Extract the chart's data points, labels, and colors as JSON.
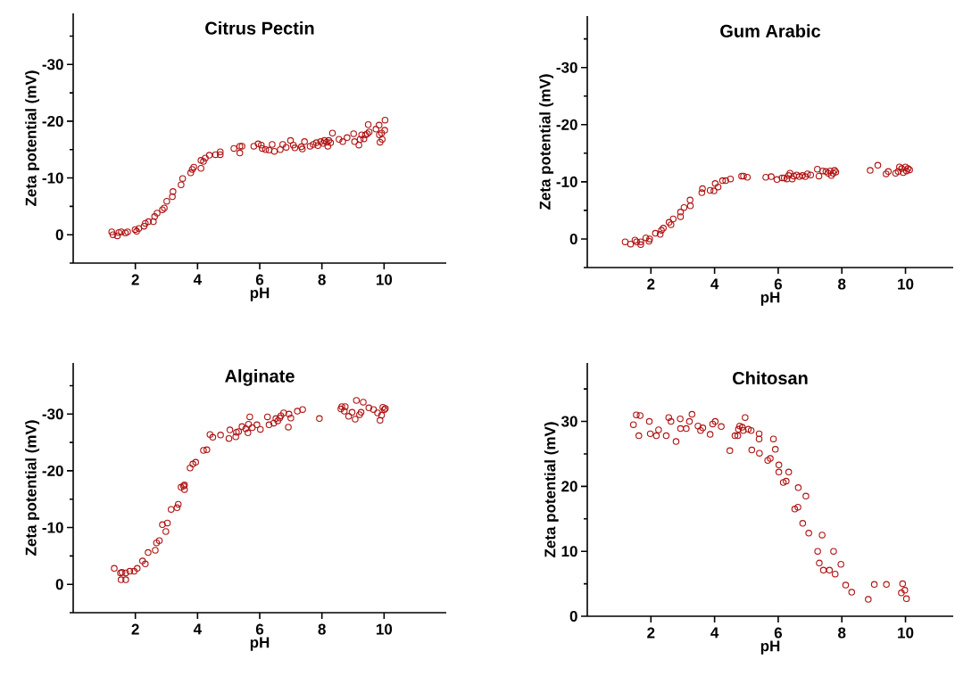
{
  "chart_data": [
    {
      "type": "scatter",
      "title": "Citrus Pectin",
      "xlabel": "pH",
      "ylabel": "Zeta potential (mV)",
      "color": "#b01212",
      "marker": "circle",
      "xlim": [
        0,
        12
      ],
      "ylim": [
        5,
        -39
      ],
      "xticks": [
        2,
        4,
        6,
        8,
        10
      ],
      "yticks": [
        {
          "value": 5,
          "label": null
        },
        0,
        {
          "value": -5,
          "label": null
        },
        -10,
        {
          "value": -15,
          "label": null
        },
        -20,
        {
          "value": -25,
          "label": null
        },
        -30,
        {
          "value": -35,
          "label": null
        }
      ],
      "x": [
        1.24,
        1.28,
        1.42,
        1.47,
        1.55,
        1.68,
        1.75,
        1.99,
        2.04,
        2.11,
        2.28,
        2.32,
        2.42,
        2.58,
        2.62,
        2.7,
        2.87,
        2.93,
        3.01,
        3.19,
        3.21,
        3.47,
        3.52,
        3.78,
        3.83,
        3.88,
        4.11,
        4.11,
        4.19,
        4.25,
        4.38,
        4.58,
        4.73,
        4.73,
        5.17,
        5.36,
        5.36,
        5.43,
        5.81,
        5.95,
        6.05,
        6.08,
        6.19,
        6.3,
        6.4,
        6.47,
        6.66,
        6.74,
        6.85,
        6.99,
        7.08,
        7.13,
        7.34,
        7.37,
        7.44,
        7.62,
        7.72,
        7.82,
        7.87,
        7.96,
        8.04,
        8.08,
        8.15,
        8.19,
        8.22,
        8.28,
        8.34,
        8.55,
        8.67,
        8.81,
        9.02,
        9.05,
        9.19,
        9.23,
        9.28,
        9.35,
        9.4,
        9.46,
        9.49,
        9.52,
        9.74,
        9.84,
        9.85,
        9.87,
        9.92,
        9.94,
        10.02,
        10.03
      ],
      "values": [
        -0.5,
        0,
        0.2,
        -0.4,
        -0.5,
        -0.3,
        -0.5,
        -0.9,
        -0.6,
        -1.1,
        -1.5,
        -2,
        -2.3,
        -2.3,
        -3.2,
        -3.8,
        -4.4,
        -4.7,
        -5.9,
        -6.7,
        -7.6,
        -8.8,
        -9.9,
        -10.9,
        -11.5,
        -11.9,
        -11.7,
        -13.1,
        -12.9,
        -13.5,
        -14,
        -14.1,
        -14.6,
        -14.1,
        -15.2,
        -14.4,
        -15.6,
        -15.6,
        -15.6,
        -16,
        -15.8,
        -15.2,
        -15,
        -14.9,
        -15.9,
        -14.7,
        -15,
        -15.9,
        -15.4,
        -16.6,
        -15.8,
        -15.3,
        -15.5,
        -15.1,
        -16.4,
        -15.6,
        -15.9,
        -16.2,
        -15.7,
        -16.4,
        -16.1,
        -16.6,
        -16.3,
        -15.6,
        -16.6,
        -16.2,
        -17.9,
        -16.8,
        -16.4,
        -17.1,
        -17.8,
        -16.4,
        -15.8,
        -16.8,
        -17.6,
        -16.9,
        -17.6,
        -17.8,
        -19.4,
        -18.1,
        -18.6,
        -19.3,
        -17.6,
        -16.3,
        -17.9,
        -16.8,
        -18.4,
        -20.2
      ]
    },
    {
      "type": "scatter",
      "title": "Gum Arabic",
      "xlabel": "pH",
      "ylabel": "Zeta potential (mV)",
      "color": "#b01212",
      "marker": "circle",
      "xlim": [
        0,
        11.5
      ],
      "ylim": [
        5,
        -39
      ],
      "xticks": [
        2,
        4,
        6,
        8,
        10
      ],
      "yticks": [
        {
          "value": 5,
          "label": null
        },
        0,
        {
          "value": -5,
          "label": null
        },
        -10,
        {
          "value": -15,
          "label": null
        },
        -20,
        {
          "value": -25,
          "label": null
        },
        -30,
        {
          "value": -35,
          "label": null
        }
      ],
      "x": [
        1.19,
        1.36,
        1.5,
        1.55,
        1.68,
        1.68,
        1.84,
        1.94,
        1.96,
        2.14,
        2.29,
        2.33,
        2.39,
        2.57,
        2.63,
        2.7,
        2.93,
        2.93,
        3.04,
        3.23,
        3.24,
        3.6,
        3.62,
        3.86,
        3.98,
        4.02,
        4.11,
        4.25,
        4.35,
        4.5,
        4.85,
        4.91,
        5.03,
        5.61,
        5.78,
        5.96,
        6.12,
        6.19,
        6.27,
        6.33,
        6.37,
        6.44,
        6.49,
        6.58,
        6.66,
        6.76,
        6.85,
        6.92,
        7.02,
        7.23,
        7.28,
        7.4,
        7.5,
        7.57,
        7.63,
        7.67,
        7.73,
        7.77,
        7.81,
        8.89,
        9.13,
        9.39,
        9.46,
        9.69,
        9.77,
        9.81,
        9.88,
        9.93,
        10,
        10.03,
        10.08,
        10.13
      ],
      "values": [
        0.5,
        0.9,
        0.2,
        0.5,
        1,
        0.5,
        -0.2,
        0.4,
        0,
        -1,
        -0.8,
        -1.5,
        -1.9,
        -2.9,
        -2.5,
        -3.5,
        -3.9,
        -4.7,
        -5.5,
        -6.8,
        -5.8,
        -8.1,
        -8.8,
        -8.5,
        -8.4,
        -9.7,
        -9.1,
        -10.2,
        -10.2,
        -10.5,
        -11,
        -11,
        -10.8,
        -10.8,
        -10.9,
        -10.4,
        -10.7,
        -10.7,
        -10.5,
        -11.1,
        -11.5,
        -10.5,
        -11,
        -11.2,
        -10.9,
        -11.1,
        -10.9,
        -11.4,
        -11.2,
        -12.2,
        -11,
        -11.9,
        -11.8,
        -11.5,
        -11.9,
        -11.1,
        -11.5,
        -12,
        -11.7,
        -12,
        -12.9,
        -11.4,
        -11.8,
        -11.5,
        -11.8,
        -12.6,
        -12.3,
        -11.6,
        -12.6,
        -11.9,
        -12.3,
        -12.1
      ]
    },
    {
      "type": "scatter",
      "title": "Alginate",
      "xlabel": "pH",
      "ylabel": "Zeta potential (mV)",
      "color": "#b01212",
      "marker": "circle",
      "xlim": [
        0,
        12
      ],
      "ylim": [
        5,
        -39
      ],
      "xticks": [
        2,
        4,
        6,
        8,
        10
      ],
      "yticks": [
        {
          "value": 5,
          "label": null
        },
        0,
        {
          "value": -5,
          "label": null
        },
        -10,
        {
          "value": -15,
          "label": null
        },
        -20,
        {
          "value": -25,
          "label": null
        },
        -30,
        {
          "value": -35,
          "label": null
        }
      ],
      "x": [
        1.32,
        1.52,
        1.54,
        1.57,
        1.69,
        1.69,
        1.82,
        1.96,
        2.06,
        2.23,
        2.32,
        2.41,
        2.64,
        2.68,
        2.77,
        2.87,
        2.98,
        3.03,
        3.15,
        3.34,
        3.38,
        3.47,
        3.55,
        3.58,
        3.58,
        3.76,
        3.85,
        3.94,
        4.19,
        4.3,
        4.4,
        4.49,
        4.74,
        5.01,
        5.04,
        5.23,
        5.25,
        5.32,
        5.43,
        5.55,
        5.62,
        5.64,
        5.68,
        5.76,
        5.91,
        6.02,
        6.25,
        6.3,
        6.45,
        6.52,
        6.58,
        6.64,
        6.68,
        6.77,
        6.92,
        6.94,
        7,
        7.21,
        7.38,
        7.92,
        8.61,
        8.64,
        8.72,
        8.75,
        8.86,
        8.97,
        9.07,
        9.11,
        9.21,
        9.26,
        9.33,
        9.51,
        9.66,
        9.79,
        9.87,
        9.92,
        9.96,
        10.01,
        10.04
      ],
      "values": [
        -2.8,
        -2,
        -0.8,
        -2.1,
        -2,
        -0.8,
        -2.3,
        -2.3,
        -2.8,
        -4.1,
        -3.6,
        -5.6,
        -6,
        -7.3,
        -7.7,
        -10.5,
        -9.3,
        -10.8,
        -13.2,
        -13.5,
        -14.1,
        -17.1,
        -17.3,
        -17.5,
        -16.7,
        -20.5,
        -21.2,
        -21.5,
        -23.6,
        -23.7,
        -26.4,
        -25.9,
        -26.3,
        -25.7,
        -27.2,
        -26,
        -26.8,
        -26.9,
        -27.8,
        -27.4,
        -26.7,
        -28.2,
        -29.5,
        -27.6,
        -28.1,
        -27.3,
        -29.5,
        -28.1,
        -28.4,
        -29.2,
        -28.8,
        -29.3,
        -29.7,
        -30.2,
        -27.7,
        -30,
        -29.3,
        -30.5,
        -30.8,
        -29.2,
        -30.9,
        -31.3,
        -30.5,
        -31.3,
        -29.6,
        -30.3,
        -29.1,
        -32.4,
        -29.9,
        -30.3,
        -32.1,
        -31.1,
        -30.8,
        -30.2,
        -28.9,
        -29.8,
        -31.2,
        -30.8,
        -31
      ]
    },
    {
      "type": "scatter",
      "title": "Chitosan",
      "xlabel": "pH",
      "ylabel": "Zeta potential (mV)",
      "color": "#b01212",
      "marker": "circle",
      "xlim": [
        0,
        11.5
      ],
      "ylim": [
        0,
        39
      ],
      "xticks": [
        2,
        4,
        6,
        8,
        10
      ],
      "yticks": [
        0,
        {
          "value": 5,
          "label": null
        },
        10,
        {
          "value": 15,
          "label": null
        },
        20,
        {
          "value": 25,
          "label": null
        },
        30,
        {
          "value": 35,
          "label": null
        }
      ],
      "x": [
        1.45,
        1.54,
        1.62,
        1.66,
        1.95,
        1.98,
        2.17,
        2.24,
        2.48,
        2.56,
        2.63,
        2.79,
        2.92,
        2.93,
        3.11,
        3.21,
        3.29,
        3.48,
        3.56,
        3.63,
        3.86,
        3.94,
        4.02,
        4.21,
        4.48,
        4.64,
        4.73,
        4.75,
        4.79,
        4.87,
        4.9,
        4.96,
        5.06,
        5.15,
        5.17,
        5.4,
        5.4,
        5.41,
        5.67,
        5.75,
        5.85,
        5.91,
        6.02,
        6.02,
        6.16,
        6.25,
        6.33,
        6.52,
        6.62,
        6.63,
        6.77,
        6.87,
        6.96,
        7.24,
        7.29,
        7.38,
        7.42,
        7.61,
        7.74,
        7.79,
        7.97,
        8.12,
        8.31,
        8.83,
        9.02,
        9.4,
        9.87,
        9.91,
        9.98,
        10.03
      ],
      "values": [
        29.5,
        31,
        27.8,
        30.9,
        30,
        28.1,
        27.8,
        28.7,
        27.8,
        30.6,
        30,
        26.9,
        30.4,
        28.9,
        28.9,
        30,
        31.1,
        29.3,
        28.6,
        29,
        28,
        29.6,
        30,
        29.2,
        25.5,
        27.8,
        27.8,
        28.8,
        29.3,
        29.1,
        28.6,
        30.6,
        28.8,
        28.6,
        25.6,
        28.1,
        27.3,
        25.1,
        24,
        24.3,
        27.3,
        25.7,
        23.3,
        22.2,
        20.6,
        20.8,
        22.2,
        16.5,
        16.8,
        19.8,
        14.3,
        18.5,
        12.8,
        10,
        8.2,
        12.5,
        7.1,
        7.1,
        10,
        6.5,
        8,
        4.8,
        3.7,
        2.6,
        4.9,
        4.9,
        3.6,
        5,
        4,
        2.7
      ]
    }
  ]
}
